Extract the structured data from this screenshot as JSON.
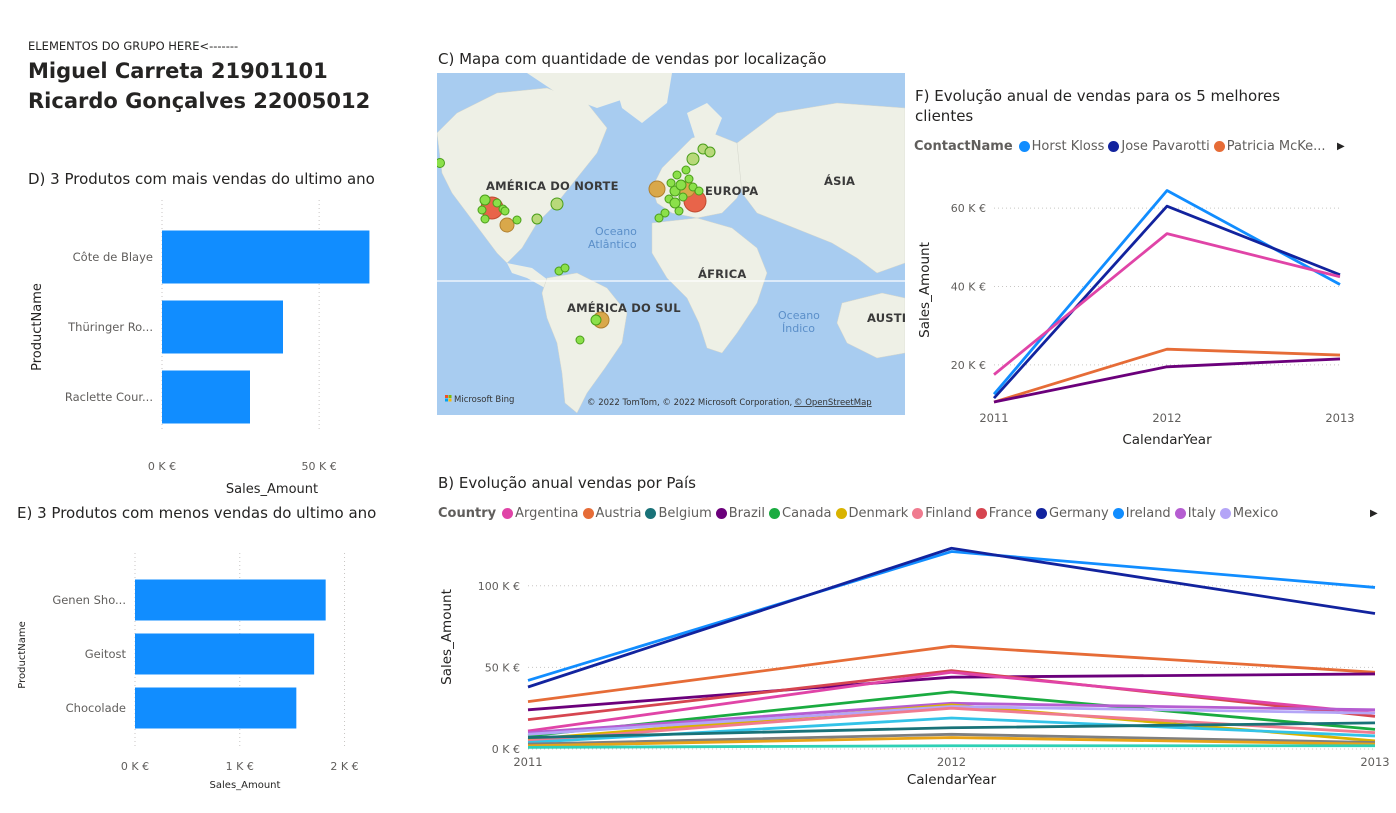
{
  "header": {
    "group_label": "ELEMENTOS DO GRUPO HERE<-------",
    "member1": "Miguel Carreta 21901101",
    "member2": "Ricardo Gonçalves 22005012"
  },
  "map": {
    "title": "C) Mapa com quantidade de vendas por localização",
    "labels": {
      "north_america": "AMÉRICA DO NORTE",
      "europe": "EUROPA",
      "asia": "ÁSIA",
      "atlantic1": "Oceano",
      "atlantic2": "Atlântico",
      "africa": "ÁFRICA",
      "south_america": "AMÉRICA DO SUL",
      "indian1": "Oceano",
      "indian2": "Índico",
      "australia": "AUSTI"
    },
    "bing": "Microsoft Bing",
    "attribution": "© 2022 TomTom, © 2022 Microsoft Corporation,",
    "attribution_link": "© OpenStreetMap"
  },
  "chart_data": [
    {
      "id": "D",
      "type": "bar",
      "orientation": "horizontal",
      "title": "D) 3 Produtos com mais vendas do ultimo ano",
      "categories": [
        "Côte de Blaye",
        "Thüringer Ro...",
        "Raclette Cour..."
      ],
      "values": [
        66000,
        38500,
        28000
      ],
      "xlabel": "Sales_Amount",
      "ylabel": "ProductName",
      "xlim": [
        0,
        70000
      ],
      "xticks": [
        {
          "v": 0,
          "label": "0 K €"
        },
        {
          "v": 50000,
          "label": "50 K €"
        }
      ],
      "color": "#118DFF",
      "grid": true
    },
    {
      "id": "E",
      "type": "bar",
      "orientation": "horizontal",
      "title": "E) 3 Produtos com menos vendas do ultimo ano",
      "categories": [
        "Genen Sho...",
        "Geitost",
        "Chocolade"
      ],
      "values": [
        1820,
        1710,
        1540
      ],
      "xlabel": "Sales_Amount",
      "ylabel": "ProductName",
      "xlim": [
        0,
        2100
      ],
      "xticks": [
        {
          "v": 0,
          "label": "0 K €"
        },
        {
          "v": 1000,
          "label": "1 K €"
        },
        {
          "v": 2000,
          "label": "2 K €"
        }
      ],
      "color": "#118DFF",
      "grid": true
    },
    {
      "id": "F",
      "type": "line",
      "title": "F) Evolução anual de vendas para os 5 melhores clientes",
      "title_line1": "F) Evolução anual de vendas para os 5 melhores",
      "title_line2": "clientes",
      "legend_title": "ContactName",
      "legend": [
        {
          "name": "Horst Kloss",
          "color": "#118DFF"
        },
        {
          "name": "Jose Pavarotti",
          "color": "#12239E"
        },
        {
          "name": "Patricia McKe...",
          "color": "#E66C37"
        }
      ],
      "x": [
        2011,
        2012,
        2013
      ],
      "xlabel": "CalendarYear",
      "ylabel": "Sales_Amount",
      "ylim": [
        10000,
        70000
      ],
      "yticks": [
        {
          "v": 20000,
          "label": "20 K €"
        },
        {
          "v": 40000,
          "label": "40 K €"
        },
        {
          "v": 60000,
          "label": "60 K €"
        }
      ],
      "series": [
        {
          "color": "#118DFF",
          "values": [
            12500,
            64500,
            40500
          ]
        },
        {
          "color": "#12239E",
          "values": [
            11500,
            60500,
            43000
          ]
        },
        {
          "color": "#E044A7",
          "values": [
            17500,
            53500,
            42500
          ]
        },
        {
          "color": "#E66C37",
          "values": [
            10500,
            24000,
            22500
          ]
        },
        {
          "color": "#6B007B",
          "values": [
            10500,
            19500,
            21500
          ]
        }
      ]
    },
    {
      "id": "B",
      "type": "line",
      "title": "B) Evolução anual vendas por País",
      "legend_title": "Country",
      "legend": [
        {
          "name": "Argentina",
          "color": "#E044A7"
        },
        {
          "name": "Austria",
          "color": "#E66C37"
        },
        {
          "name": "Belgium",
          "color": "#197278"
        },
        {
          "name": "Brazil",
          "color": "#6B007B"
        },
        {
          "name": "Canada",
          "color": "#1AAB40"
        },
        {
          "name": "Denmark",
          "color": "#D9B300"
        },
        {
          "name": "Finland",
          "color": "#F07B8F"
        },
        {
          "name": "France",
          "color": "#D64550"
        },
        {
          "name": "Germany",
          "color": "#12239E"
        },
        {
          "name": "Ireland",
          "color": "#118DFF"
        },
        {
          "name": "Italy",
          "color": "#B55DD1"
        },
        {
          "name": "Mexico",
          "color": "#B4A5F7"
        }
      ],
      "x": [
        2011,
        2012,
        2013
      ],
      "xlabel": "CalendarYear",
      "ylabel": "Sales_Amount",
      "ylim": [
        0,
        125000
      ],
      "yticks": [
        {
          "v": 0,
          "label": "0 K €"
        },
        {
          "v": 50000,
          "label": "50 K €"
        },
        {
          "v": 100000,
          "label": "100 K €"
        }
      ],
      "series": [
        {
          "color": "#118DFF",
          "values": [
            42000,
            121000,
            99000
          ]
        },
        {
          "color": "#12239E",
          "values": [
            38000,
            123000,
            83000
          ]
        },
        {
          "color": "#E66C37",
          "values": [
            29000,
            63000,
            47000
          ]
        },
        {
          "color": "#6B007B",
          "values": [
            24000,
            44000,
            46000
          ]
        },
        {
          "color": "#D64550",
          "values": [
            18000,
            48000,
            20000
          ]
        },
        {
          "color": "#E044A7",
          "values": [
            11000,
            47000,
            22000
          ]
        },
        {
          "color": "#1AAB40",
          "values": [
            8000,
            35000,
            12000
          ]
        },
        {
          "color": "#B55DD1",
          "values": [
            10000,
            28000,
            24000
          ]
        },
        {
          "color": "#D9B300",
          "values": [
            6000,
            27000,
            5000
          ]
        },
        {
          "color": "#B4A5F7",
          "values": [
            9000,
            26000,
            22000
          ]
        },
        {
          "color": "#F07B8F",
          "values": [
            5000,
            25000,
            10000
          ]
        },
        {
          "color": "#33C3E8",
          "values": [
            4000,
            19000,
            8000
          ]
        },
        {
          "color": "#197278",
          "values": [
            7000,
            13000,
            16000
          ]
        },
        {
          "color": "#7F7F7F",
          "values": [
            3000,
            9000,
            4000
          ]
        },
        {
          "color": "#E8A317",
          "values": [
            2000,
            7000,
            3000
          ]
        },
        {
          "color": "#2FD0B5",
          "values": [
            1000,
            2000,
            2000
          ]
        }
      ]
    }
  ]
}
